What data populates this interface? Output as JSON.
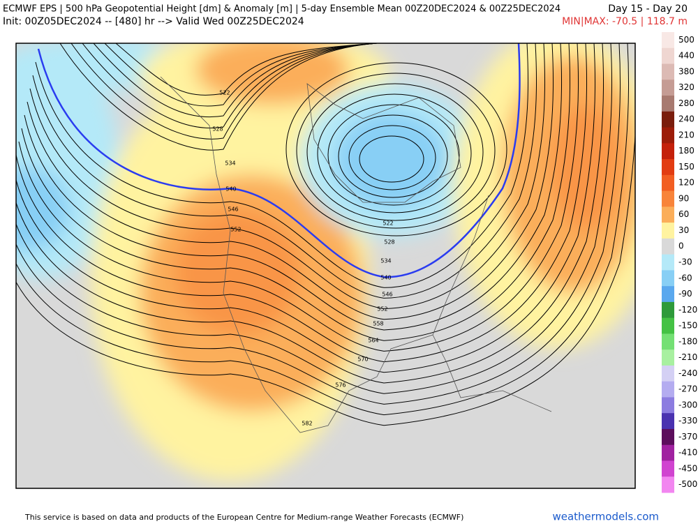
{
  "header": {
    "title": "ECMWF EPS | 500 hPa Geopotential Height [dm] & Anomaly [m] | 5-day Ensemble Mean 00Z20DEC2024 & 00Z25DEC2024",
    "period": "Day 15 - Day 20",
    "init": "Init: 00Z05DEC2024 -- [480] hr --> Valid Wed 00Z25DEC2024",
    "minmax": "MIN|MAX: -70.5 | 118.7 m"
  },
  "colorbar": [
    {
      "label": "500",
      "color": "#f8e8e5"
    },
    {
      "label": "440",
      "color": "#efd6d1"
    },
    {
      "label": "380",
      "color": "#dcbab4"
    },
    {
      "label": "320",
      "color": "#c59c94"
    },
    {
      "label": "280",
      "color": "#a87a70"
    },
    {
      "label": "240",
      "color": "#7a1d0c"
    },
    {
      "label": "210",
      "color": "#9c1c08"
    },
    {
      "label": "180",
      "color": "#c4200a"
    },
    {
      "label": "150",
      "color": "#e23c12"
    },
    {
      "label": "120",
      "color": "#f25e22"
    },
    {
      "label": "90",
      "color": "#f8843a"
    },
    {
      "label": "60",
      "color": "#fbae5a"
    },
    {
      "label": "30",
      "color": "#fff3a0"
    },
    {
      "label": "0",
      "color": "#d9d9d9"
    },
    {
      "label": "-30",
      "color": "#b4e9f8"
    },
    {
      "label": "-60",
      "color": "#88cff5"
    },
    {
      "label": "-90",
      "color": "#5aa8ee"
    },
    {
      "label": "-120",
      "color": "#2e9a3a"
    },
    {
      "label": "-150",
      "color": "#44c244"
    },
    {
      "label": "-180",
      "color": "#74e074"
    },
    {
      "label": "-210",
      "color": "#a8f0a0"
    },
    {
      "label": "-240",
      "color": "#d4d0f4"
    },
    {
      "label": "-270",
      "color": "#b4acf0"
    },
    {
      "label": "-300",
      "color": "#8c7ce0"
    },
    {
      "label": "-330",
      "color": "#4a32b0"
    },
    {
      "label": "-370",
      "color": "#5c0e5c"
    },
    {
      "label": "-410",
      "color": "#a022a0"
    },
    {
      "label": "-450",
      "color": "#d044d0"
    },
    {
      "label": "-500",
      "color": "#f286f0"
    }
  ],
  "contour_labels": [
    "522",
    "528",
    "534",
    "540",
    "546",
    "552",
    "522",
    "528",
    "534",
    "540",
    "546",
    "552",
    "558",
    "564",
    "570",
    "576",
    "582"
  ],
  "footer": {
    "notice": "This service is based on data and products of the European Centre for Medium-range Weather Forecasts (ECMWF)",
    "site": "weathermodels.com"
  }
}
